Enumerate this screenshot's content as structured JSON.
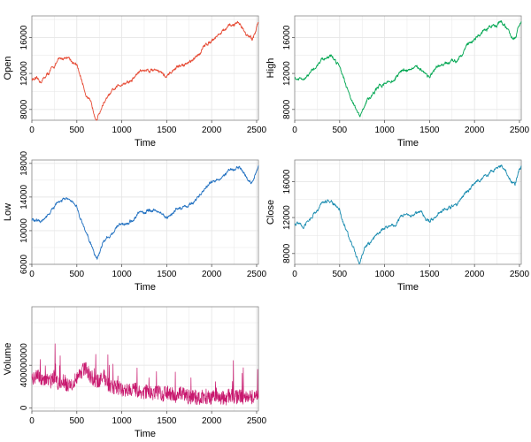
{
  "chart_data": [
    {
      "type": "line",
      "panel": "top-left",
      "xlabel": "Time",
      "ylabel": "Open",
      "color": "#E64B35",
      "xlim": [
        0,
        2520
      ],
      "ylim": [
        6800,
        18400
      ],
      "xticks": [
        0,
        500,
        1000,
        1500,
        2000,
        2500
      ],
      "yticks": [
        8000,
        12000,
        16000
      ],
      "grid": true,
      "series": [
        {
          "x": [
            0,
            100,
            200,
            300,
            400,
            500,
            550,
            600,
            650,
            700,
            725,
            800,
            900,
            1000,
            1100,
            1200,
            1300,
            1400,
            1500,
            1600,
            1700,
            1800,
            1900,
            2000,
            2100,
            2200,
            2300,
            2350,
            2400,
            2450,
            2500,
            2520
          ],
          "values": [
            11400,
            11100,
            12200,
            13500,
            13900,
            12800,
            11400,
            9800,
            8700,
            7500,
            7000,
            8800,
            10000,
            10900,
            11100,
            12300,
            12400,
            12500,
            11500,
            12600,
            13000,
            13400,
            14800,
            15800,
            16500,
            17200,
            17700,
            17000,
            16200,
            15700,
            17200,
            17700
          ]
        }
      ]
    },
    {
      "type": "line",
      "panel": "top-right",
      "xlabel": "Time",
      "ylabel": "High",
      "color": "#00A651",
      "xlim": [
        0,
        2520
      ],
      "ylim": [
        6800,
        18400
      ],
      "xticks": [
        0,
        500,
        1000,
        1500,
        2000,
        2500
      ],
      "yticks": [
        8000,
        12000,
        16000
      ],
      "grid": true,
      "series": [
        {
          "x": [
            0,
            100,
            200,
            300,
            400,
            500,
            550,
            600,
            650,
            700,
            725,
            800,
            900,
            1000,
            1100,
            1200,
            1300,
            1400,
            1500,
            1600,
            1700,
            1800,
            1900,
            2000,
            2100,
            2200,
            2300,
            2350,
            2400,
            2450,
            2500,
            2520
          ],
          "values": [
            11500,
            11200,
            12300,
            13600,
            14000,
            12900,
            11500,
            9900,
            8800,
            7600,
            7100,
            8900,
            10100,
            11000,
            11200,
            12400,
            12500,
            12600,
            11600,
            12700,
            13100,
            13500,
            14900,
            15900,
            16600,
            17300,
            17800,
            17100,
            16300,
            15800,
            17300,
            17800
          ]
        }
      ]
    },
    {
      "type": "line",
      "panel": "middle-left",
      "xlabel": "Time",
      "ylabel": "Low",
      "color": "#1F6FC0",
      "xlim": [
        0,
        2520
      ],
      "ylim": [
        6000,
        18400
      ],
      "xticks": [
        0,
        500,
        1000,
        1500,
        2000,
        2500
      ],
      "yticks": [
        6000,
        10000,
        14000,
        18000
      ],
      "grid": true,
      "series": [
        {
          "x": [
            0,
            100,
            200,
            300,
            400,
            500,
            550,
            600,
            650,
            700,
            725,
            800,
            900,
            1000,
            1100,
            1200,
            1300,
            1400,
            1500,
            1600,
            1700,
            1800,
            1900,
            2000,
            2100,
            2200,
            2300,
            2350,
            2400,
            2450,
            2500,
            2520
          ],
          "values": [
            11300,
            11000,
            12100,
            13400,
            13800,
            12700,
            11300,
            9700,
            8600,
            7300,
            6700,
            8700,
            9900,
            10800,
            11000,
            12200,
            12300,
            12400,
            11400,
            12500,
            12900,
            13300,
            14700,
            15700,
            16400,
            17100,
            17600,
            16900,
            16100,
            15600,
            17100,
            17600
          ]
        }
      ]
    },
    {
      "type": "line",
      "panel": "middle-right",
      "xlabel": "Time",
      "ylabel": "Close",
      "color": "#1A8CB0",
      "xlim": [
        0,
        2520
      ],
      "ylim": [
        6800,
        18400
      ],
      "xticks": [
        0,
        500,
        1000,
        1500,
        2000,
        2500
      ],
      "yticks": [
        8000,
        12000,
        16000
      ],
      "grid": true,
      "series": [
        {
          "x": [
            0,
            100,
            200,
            300,
            400,
            500,
            550,
            600,
            650,
            700,
            725,
            800,
            900,
            1000,
            1100,
            1200,
            1300,
            1400,
            1500,
            1600,
            1700,
            1800,
            1900,
            2000,
            2100,
            2200,
            2300,
            2350,
            2400,
            2450,
            2500,
            2520
          ],
          "values": [
            11400,
            11100,
            12200,
            13500,
            13900,
            12800,
            11400,
            9800,
            8700,
            7500,
            7000,
            8800,
            10000,
            10900,
            11100,
            12300,
            12400,
            12500,
            11500,
            12600,
            13000,
            13400,
            14800,
            15800,
            16500,
            17200,
            17700,
            17000,
            16200,
            15700,
            17200,
            17700
          ]
        }
      ]
    },
    {
      "type": "line",
      "panel": "bottom-left",
      "xlabel": "Time",
      "ylabel": "Volume",
      "color": "#C8186E",
      "xlim": [
        0,
        2520
      ],
      "ylim": [
        -30000000,
        950000000
      ],
      "xticks": [
        0,
        500,
        1000,
        1500,
        2000,
        2500
      ],
      "yticks": [
        0,
        400000000
      ],
      "ytick_labels": [
        "0",
        "400000000"
      ],
      "grid": true,
      "series": [
        {
          "x": [
            0,
            30,
            60,
            100,
            150,
            200,
            250,
            300,
            350,
            400,
            450,
            500,
            550,
            600,
            650,
            700,
            750,
            800,
            850,
            900,
            950,
            1000,
            1050,
            1100,
            1150,
            1200,
            1250,
            1300,
            1350,
            1400,
            1450,
            1500,
            1550,
            1600,
            1650,
            1700,
            1750,
            1800,
            1850,
            1900,
            1950,
            2000,
            2050,
            2100,
            2150,
            2200,
            2250,
            2300,
            2350,
            2400,
            2450,
            2500,
            2520
          ],
          "values": [
            300000000,
            260000000,
            330000000,
            250000000,
            280000000,
            240000000,
            300000000,
            220000000,
            260000000,
            210000000,
            230000000,
            280000000,
            340000000,
            380000000,
            300000000,
            260000000,
            240000000,
            300000000,
            220000000,
            200000000,
            190000000,
            170000000,
            160000000,
            180000000,
            170000000,
            150000000,
            140000000,
            160000000,
            130000000,
            150000000,
            120000000,
            140000000,
            130000000,
            110000000,
            130000000,
            120000000,
            100000000,
            110000000,
            90000000,
            110000000,
            100000000,
            90000000,
            110000000,
            100000000,
            80000000,
            120000000,
            95000000,
            110000000,
            100000000,
            120000000,
            105000000,
            110000000,
            115000000
          ]
        }
      ]
    }
  ]
}
